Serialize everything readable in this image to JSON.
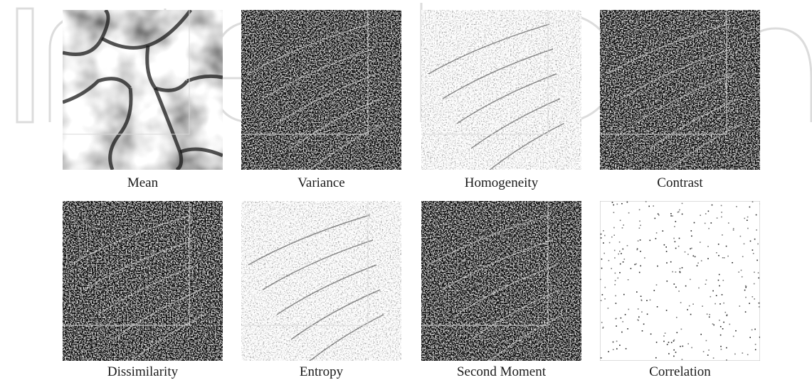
{
  "watermark": {
    "text": "IntechOpen",
    "color": "#d9d9d9"
  },
  "panels": [
    {
      "id": "mean",
      "caption": "Mean",
      "tone": "mean"
    },
    {
      "id": "variance",
      "caption": "Variance",
      "tone": "dark"
    },
    {
      "id": "homogeneity",
      "caption": "Homogeneity",
      "tone": "light"
    },
    {
      "id": "contrast",
      "caption": "Contrast",
      "tone": "dark"
    },
    {
      "id": "dissimilarity",
      "caption": "Dissimilarity",
      "tone": "dark"
    },
    {
      "id": "entropy",
      "caption": "Entropy",
      "tone": "light"
    },
    {
      "id": "second-moment",
      "caption": "Second Moment",
      "tone": "dark"
    },
    {
      "id": "correlation",
      "caption": "Correlation",
      "tone": "sparse"
    }
  ]
}
